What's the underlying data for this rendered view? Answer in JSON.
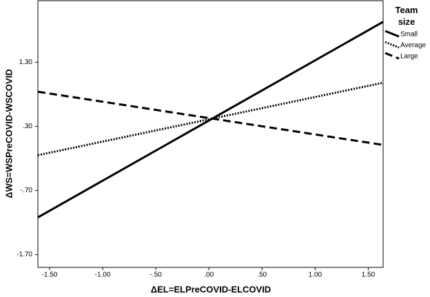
{
  "chart_data": {
    "type": "line",
    "x_label": "ΔEL=ELPreCOVID-ELCOVID",
    "y_label": "ΔWS=WSPreCOVID-WSCOVID",
    "legend_title": "Team size",
    "legend": "outside-right-top",
    "x": [
      -1.61,
      1.64
    ],
    "series": [
      {
        "name": "Small",
        "color": "#000000",
        "style": "solid",
        "values": [
          -1.12,
          1.93
        ]
      },
      {
        "name": "Average",
        "color": "#000000",
        "style": "dotted",
        "values": [
          -0.15,
          0.98
        ]
      },
      {
        "name": "Large",
        "color": "#000000",
        "style": "dashed",
        "values": [
          0.84,
          0.01
        ]
      }
    ],
    "xlim": [
      -1.61,
      1.64
    ],
    "ylim": [
      -1.9,
      2.26
    ],
    "xticks": [
      {
        "value": -1.5,
        "label": "-1.50"
      },
      {
        "value": -1.0,
        "label": "-1.00"
      },
      {
        "value": -0.5,
        "label": "-.50"
      },
      {
        "value": 0,
        "label": ".00"
      },
      {
        "value": 0.5,
        "label": ".50"
      },
      {
        "value": 1.0,
        "label": "1.00"
      },
      {
        "value": 1.5,
        "label": "1.50"
      }
    ],
    "yticks": [
      {
        "value": 1.3,
        "label": "1.30"
      },
      {
        "value": 0.3,
        "label": ".30"
      },
      {
        "value": -0.7,
        "label": "-.70"
      },
      {
        "value": -1.7,
        "label": "-1.70"
      }
    ],
    "grid": false
  }
}
